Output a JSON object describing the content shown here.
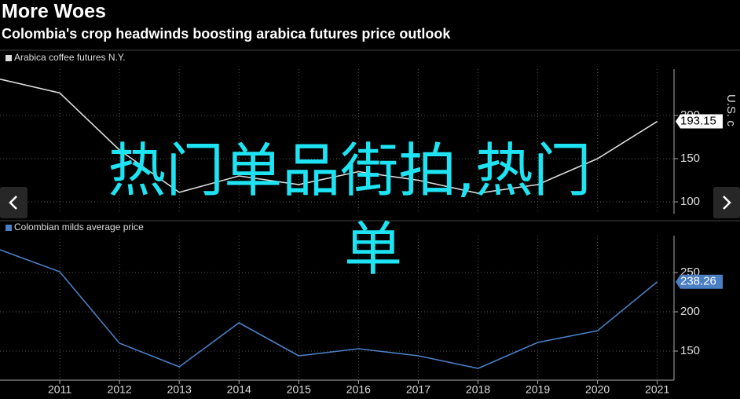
{
  "header": {
    "title": "More Woes",
    "subtitle": "Colombia's crop headwinds boosting arabica futures price outlook"
  },
  "chart_data": [
    {
      "type": "line",
      "x": [
        2010,
        2011,
        2012,
        2013,
        2014,
        2015,
        2016,
        2017,
        2018,
        2019,
        2020,
        2021
      ],
      "series": [
        {
          "name": "Arabica coffee futures N.Y.",
          "color": "#dcdcdc",
          "values": [
            242,
            226,
            160,
            111,
            130,
            120,
            135,
            125,
            110,
            120,
            150,
            193.15
          ]
        }
      ],
      "xlim": [
        2010,
        2021.28
      ],
      "ylim": [
        86.4,
        253.6
      ],
      "yticks": [
        100,
        150,
        200
      ],
      "ylabel": "U.S. c",
      "grid": true
    },
    {
      "type": "line",
      "x": [
        2010,
        2011,
        2012,
        2013,
        2014,
        2015,
        2016,
        2017,
        2018,
        2019,
        2020,
        2021
      ],
      "series": [
        {
          "name": "Colombian milds average price",
          "color": "#4a7fc4",
          "values": [
            279,
            251,
            160,
            130,
            186,
            144,
            153,
            144,
            128,
            161,
            176,
            238.26
          ]
        }
      ],
      "xlim": [
        2010,
        2021.28
      ],
      "ylim": [
        113,
        297
      ],
      "yticks": [
        150,
        200,
        250
      ],
      "xticks": [
        2011,
        2012,
        2013,
        2014,
        2015,
        2016,
        2017,
        2018,
        2019,
        2020,
        2021
      ],
      "grid": true
    }
  ],
  "overlay": {
    "lines": [
      "热门单品街拍,热门",
      "单"
    ]
  }
}
